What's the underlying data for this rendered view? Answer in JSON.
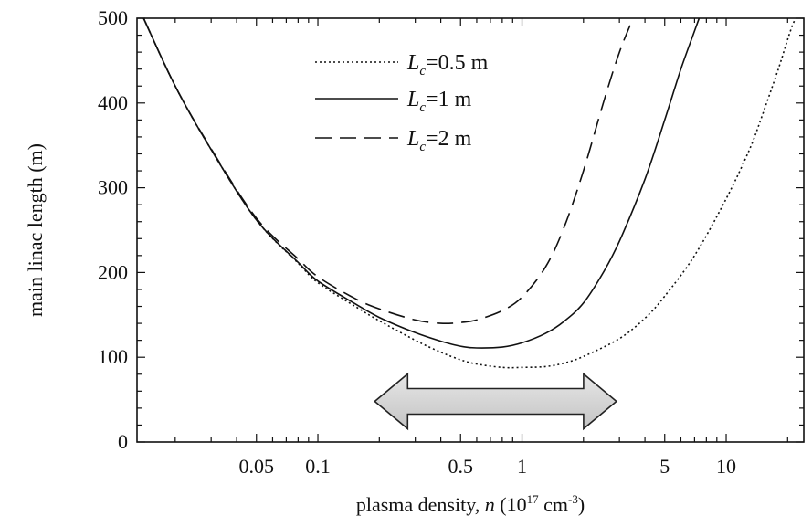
{
  "chart_data": {
    "type": "line",
    "x_scale": "log",
    "xlim": [
      0.013,
      24
    ],
    "ylim": [
      0,
      500
    ],
    "xticks": [
      {
        "value": 0.05,
        "label": "0.05"
      },
      {
        "value": 0.1,
        "label": "0.1"
      },
      {
        "value": 0.5,
        "label": "0.5"
      },
      {
        "value": 1,
        "label": "1"
      },
      {
        "value": 5,
        "label": "5"
      },
      {
        "value": 10,
        "label": "10"
      }
    ],
    "yticks": [
      {
        "value": 0,
        "label": "0"
      },
      {
        "value": 100,
        "label": "100"
      },
      {
        "value": 200,
        "label": "200"
      },
      {
        "value": 300,
        "label": "300"
      },
      {
        "value": 400,
        "label": "400"
      },
      {
        "value": 500,
        "label": "500"
      }
    ],
    "xlabel": {
      "main": "plasma density, ",
      "var": "n",
      "units_open": " (10",
      "units_exp": "17",
      "units_mid": " cm",
      "units_exp2": "-3",
      "units_close": ")"
    },
    "ylabel": "main linac length (m)",
    "legend_position": "top-center",
    "grid": false,
    "series": [
      {
        "name": "Lc=0.5 m",
        "legend_prefix": "L",
        "legend_sub": "c",
        "legend_suffix": "=0.5 m",
        "style": "dotted",
        "x": [
          0.014,
          0.02,
          0.03,
          0.05,
          0.08,
          0.1,
          0.15,
          0.2,
          0.3,
          0.4,
          0.5,
          0.6,
          0.8,
          1.0,
          1.3,
          1.6,
          2.0,
          3.0,
          4.0,
          5.0,
          7.0,
          10.0,
          13.0,
          15.0,
          18.0,
          21.0,
          24.0
        ],
        "y": [
          500,
          420,
          345,
          262,
          211,
          188,
          161,
          143,
          120,
          106,
          97,
          92,
          88,
          88,
          89,
          93,
          101,
          122,
          146,
          172,
          220,
          287,
          345,
          385,
          440,
          490,
          520
        ]
      },
      {
        "name": "Lc=1 m",
        "legend_prefix": "L",
        "legend_sub": "c",
        "legend_suffix": "=1 m",
        "style": "solid",
        "x": [
          0.014,
          0.02,
          0.03,
          0.05,
          0.08,
          0.1,
          0.15,
          0.2,
          0.3,
          0.4,
          0.5,
          0.6,
          0.8,
          1.0,
          1.3,
          1.6,
          2.0,
          2.5,
          3.0,
          4.0,
          5.0,
          6.0,
          7.0,
          7.5
        ],
        "y": [
          500,
          420,
          345,
          262,
          212,
          190,
          164,
          147,
          129,
          119,
          113,
          111,
          112,
          117,
          128,
          142,
          164,
          200,
          237,
          310,
          380,
          440,
          485,
          505
        ]
      },
      {
        "name": "Lc=2 m",
        "legend_prefix": "L",
        "legend_sub": "c",
        "legend_suffix": "=2 m",
        "style": "dashed",
        "x": [
          0.014,
          0.02,
          0.03,
          0.05,
          0.08,
          0.1,
          0.15,
          0.2,
          0.3,
          0.4,
          0.5,
          0.6,
          0.8,
          1.0,
          1.3,
          1.6,
          2.0,
          2.5,
          3.0,
          3.5,
          3.7
        ],
        "y": [
          500,
          420,
          346,
          264,
          216,
          195,
          170,
          157,
          144,
          140,
          141,
          144,
          155,
          171,
          206,
          252,
          320,
          400,
          460,
          500,
          515
        ]
      }
    ],
    "annotation": {
      "type": "double-arrow",
      "description": "",
      "x_start": 0.19,
      "x_end": 2.9,
      "y": 48,
      "fill": "#d0d0d0",
      "stroke": "#222222"
    }
  }
}
